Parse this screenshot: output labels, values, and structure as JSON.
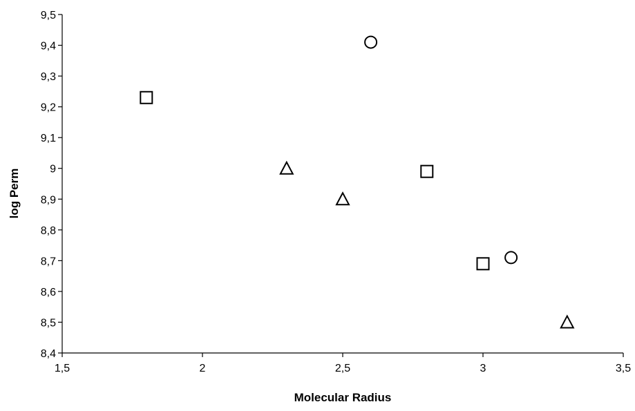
{
  "chart_data": {
    "type": "scatter",
    "xlabel": "Molecular Radius",
    "ylabel": "log Perm",
    "xlim": [
      1.5,
      3.5
    ],
    "ylim": [
      8.4,
      9.5
    ],
    "x_ticks": [
      "1,5",
      "2",
      "2,5",
      "3",
      "3,5"
    ],
    "y_ticks": [
      "8,4",
      "8,5",
      "8,6",
      "8,7",
      "8,8",
      "8,9",
      "9",
      "9,1",
      "9,2",
      "9,3",
      "9,4",
      "9,5"
    ],
    "grid": false,
    "legend": "none",
    "series": [
      {
        "marker": "square",
        "points": [
          {
            "x": 1.8,
            "y": 9.23
          },
          {
            "x": 2.8,
            "y": 8.99
          },
          {
            "x": 3.0,
            "y": 8.69
          }
        ]
      },
      {
        "marker": "triangle",
        "points": [
          {
            "x": 2.3,
            "y": 9.0
          },
          {
            "x": 2.5,
            "y": 8.9
          },
          {
            "x": 3.3,
            "y": 8.5
          }
        ]
      },
      {
        "marker": "circle",
        "points": [
          {
            "x": 2.6,
            "y": 9.41
          },
          {
            "x": 3.1,
            "y": 8.71
          }
        ]
      }
    ],
    "colors": {
      "marker_stroke": "#000000",
      "marker_fill": "#ffffff",
      "axis": "#000000"
    }
  }
}
